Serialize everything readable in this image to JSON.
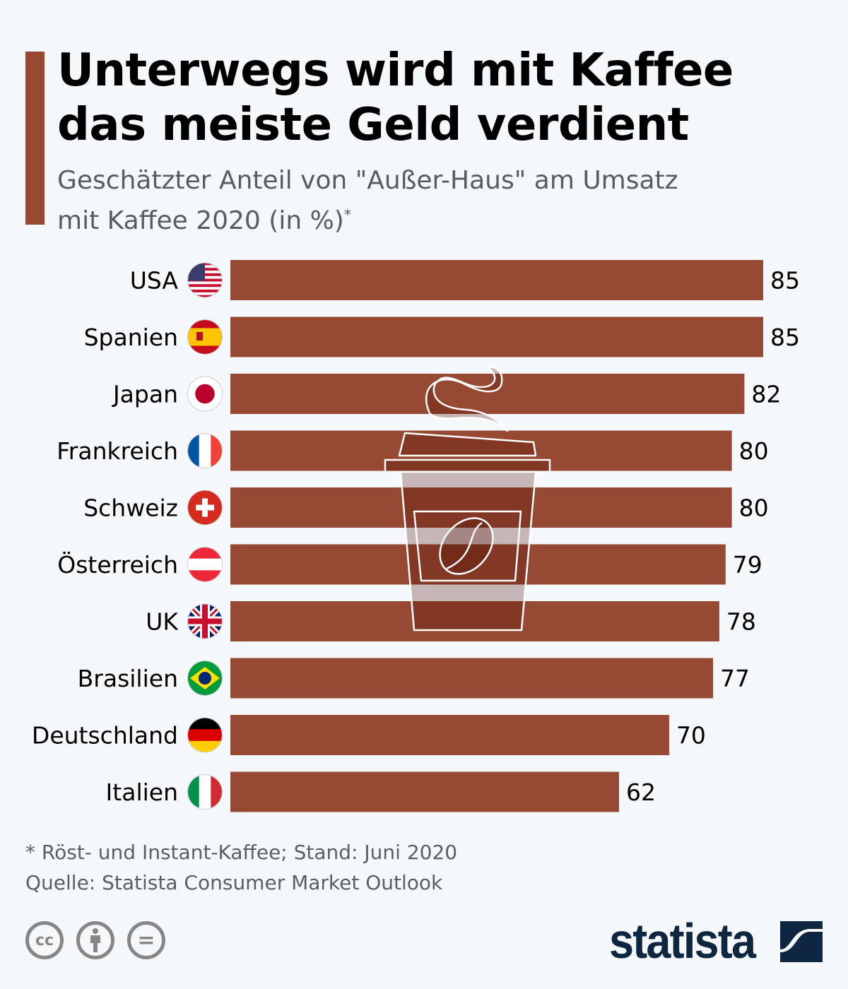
{
  "header": {
    "title_line1": "Unterwegs wird mit Kaffee",
    "title_line2": "das meiste Geld verdient",
    "subtitle_line1": "Geschätzter Anteil von \"Außer-Haus\" am Umsatz",
    "subtitle_line2": "mit Kaffee 2020 (in %)",
    "subtitle_mark": "*"
  },
  "chart_data": {
    "type": "bar",
    "orientation": "horizontal",
    "categories": [
      "USA",
      "Spanien",
      "Japan",
      "Frankreich",
      "Schweiz",
      "Österreich",
      "UK",
      "Brasilien",
      "Deutschland",
      "Italien"
    ],
    "flags": [
      "flag-usa-icon",
      "flag-spain-icon",
      "flag-japan-icon",
      "flag-france-icon",
      "flag-switzerland-icon",
      "flag-austria-icon",
      "flag-uk-icon",
      "flag-brazil-icon",
      "flag-germany-icon",
      "flag-italy-icon"
    ],
    "values": [
      85,
      85,
      82,
      80,
      80,
      79,
      78,
      77,
      70,
      62
    ],
    "xlim": [
      0,
      85
    ],
    "grid": false,
    "bar_color": "#964a33",
    "decoration": "coffee-cup-icon"
  },
  "footer": {
    "note": "* Röst- und Instant-Kaffee; Stand: Juni 2020",
    "source": "Quelle: Statista Consumer Market Outlook",
    "license_icons": [
      "cc-icon",
      "attribution-icon",
      "no-derivatives-icon"
    ],
    "cc_label": "cc",
    "nd_label": "=",
    "logo": "statista"
  },
  "colors": {
    "background": "#f4f8fb",
    "accent": "#964a33",
    "logo": "#0f2640"
  }
}
